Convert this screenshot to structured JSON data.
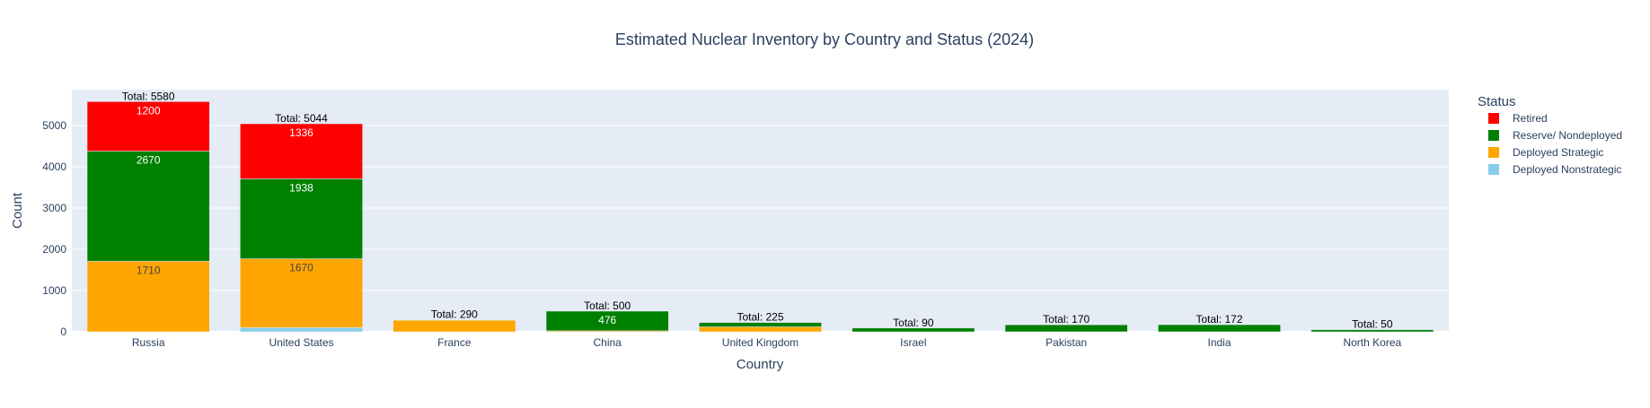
{
  "chart_data": {
    "type": "bar",
    "stacked": true,
    "title": "Estimated Nuclear Inventory by Country and Status (2024)",
    "xlabel": "Country",
    "ylabel": "Count",
    "ylim": [
      0,
      5870
    ],
    "yticks": [
      0,
      1000,
      2000,
      3000,
      4000,
      5000
    ],
    "grid": true,
    "legend_title": "Status",
    "legend_position": "right",
    "categories": [
      "Russia",
      "United States",
      "France",
      "China",
      "United Kingdom",
      "Israel",
      "Pakistan",
      "India",
      "North Korea"
    ],
    "series": [
      {
        "name": "Deployed Nonstrategic",
        "color": "#87CEEB",
        "values": [
          0,
          100,
          0,
          0,
          0,
          0,
          0,
          0,
          0
        ]
      },
      {
        "name": "Deployed Strategic",
        "color": "#FFA500",
        "values": [
          1710,
          1670,
          280,
          24,
          120,
          0,
          0,
          0,
          0
        ]
      },
      {
        "name": "Reserve/ Nondeployed",
        "color": "#008000",
        "values": [
          2670,
          1938,
          10,
          476,
          105,
          90,
          170,
          172,
          50
        ]
      },
      {
        "name": "Retired",
        "color": "#FF0000",
        "values": [
          1200,
          1336,
          0,
          0,
          0,
          0,
          0,
          0,
          0
        ]
      }
    ],
    "totals": [
      "Total: 5580",
      "Total: 5044",
      "Total: 290",
      "Total: 500",
      "Total: 225",
      "Total: 90",
      "Total: 170",
      "Total: 172",
      "Total: 50"
    ],
    "legend_order": [
      "Retired",
      "Reserve/ Nondeployed",
      "Deployed Strategic",
      "Deployed Nonstrategic"
    ],
    "colors": {
      "plot_bg": "#E5ECF6",
      "grid": "#ffffff",
      "text": "#2a3f5f"
    }
  }
}
